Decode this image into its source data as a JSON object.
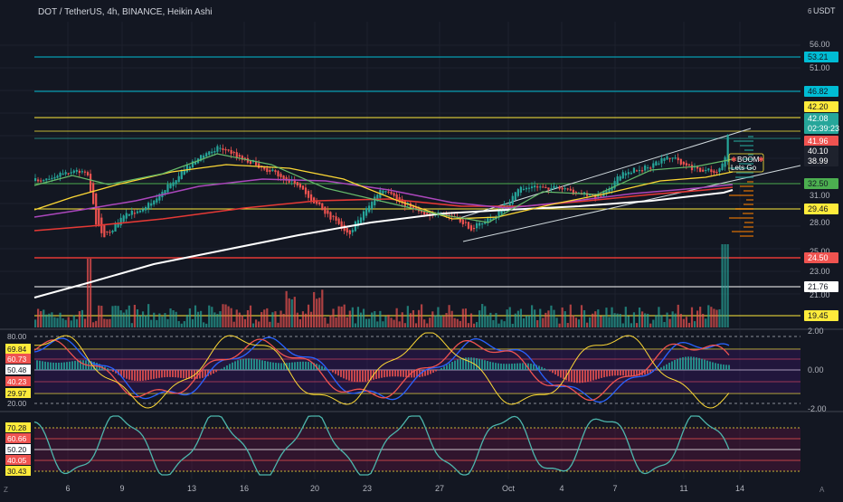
{
  "header": {
    "symbol_title": "DOT / TetherUS, 4h, BINANCE, Heikin Ashi",
    "currency": "USDT",
    "currency_prefix": "6"
  },
  "annotation": {
    "line1": "BOOM",
    "line2": "Lets Go"
  },
  "colors": {
    "background": "#131722",
    "up": "#26a69a",
    "down": "#ef5350",
    "cyan": "#00bcd4",
    "yellow": "#ffeb3b",
    "green": "#4caf50",
    "red": "#e53935",
    "white": "#ffffff",
    "purple": "#9c27b0"
  },
  "price_axis": {
    "ticks": [
      "56.00",
      "51.00",
      "31.00",
      "28.00",
      "25.00",
      "23.00",
      "21.00"
    ],
    "labels": [
      {
        "text": "53.21",
        "style": "cyan"
      },
      {
        "text": "46.82",
        "style": "cyan"
      },
      {
        "text": "42.20",
        "style": "yellow"
      },
      {
        "text": "42.08",
        "style": "teal"
      },
      {
        "text": "02:39:23",
        "style": "teal"
      },
      {
        "text": "41.96",
        "style": "red"
      },
      {
        "text": "40.10",
        "style": "dark"
      },
      {
        "text": "38.99",
        "style": "dark"
      },
      {
        "text": "32.50",
        "style": "green"
      },
      {
        "text": "29.46",
        "style": "yellow"
      },
      {
        "text": "24.50",
        "style": "red"
      },
      {
        "text": "21.76",
        "style": "white"
      },
      {
        "text": "19.45",
        "style": "yellow"
      }
    ]
  },
  "osc1": {
    "axis_right": [
      "2.00",
      "0.00",
      "-2.00"
    ],
    "labels_left": [
      {
        "text": "80.00",
        "style": "plain"
      },
      {
        "text": "69.84",
        "style": "yellow"
      },
      {
        "text": "60.73",
        "style": "red"
      },
      {
        "text": "50.48",
        "style": "white"
      },
      {
        "text": "40.23",
        "style": "red"
      },
      {
        "text": "29.97",
        "style": "yellow"
      },
      {
        "text": "20.00",
        "style": "plain"
      }
    ]
  },
  "osc2": {
    "labels_left": [
      {
        "text": "70.28",
        "style": "yellow"
      },
      {
        "text": "60.66",
        "style": "red"
      },
      {
        "text": "50.20",
        "style": "white"
      },
      {
        "text": "40.05",
        "style": "red"
      },
      {
        "text": "30.43",
        "style": "yellow"
      }
    ]
  },
  "time_axis": [
    "6",
    "9",
    "13",
    "16",
    "20",
    "23",
    "27",
    "Oct",
    "4",
    "7",
    "11",
    "14"
  ],
  "footer": {
    "left_icon": "Z",
    "right_icon": "A"
  }
}
